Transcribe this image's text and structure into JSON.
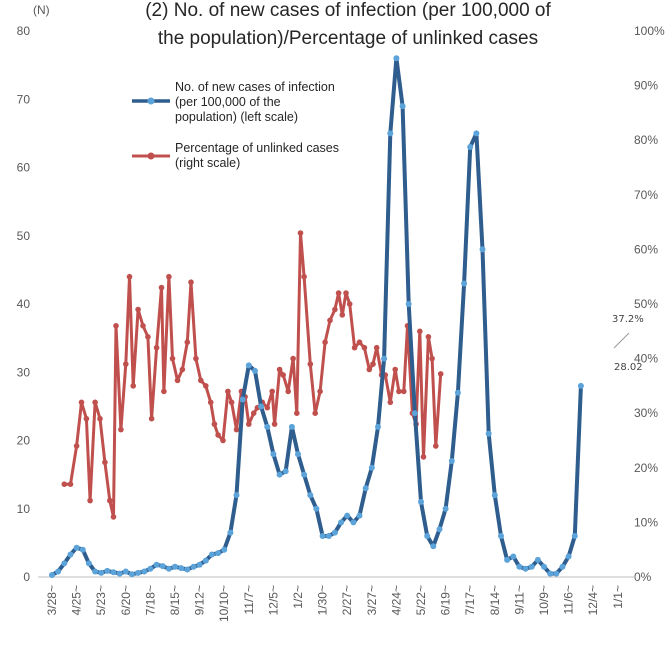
{
  "chart_data": {
    "type": "line",
    "title_line1": "(2) No. of new cases of infection (per 100,000 of",
    "title_line2": "the population)/Percentage of unlinked cases",
    "left_unit": "(N)",
    "y_left": {
      "min": 0,
      "max": 80,
      "ticks": [
        "0",
        "10",
        "20",
        "30",
        "40",
        "50",
        "60",
        "70",
        "80"
      ]
    },
    "y_right": {
      "min": 0,
      "max": 100,
      "ticks": [
        "0%",
        "10%",
        "20%",
        "30%",
        "40%",
        "50%",
        "60%",
        "70%",
        "80%",
        "90%",
        "100%"
      ]
    },
    "x_labels": [
      "3/28~",
      "4/25~",
      "5/23~",
      "6/20~",
      "7/18~",
      "8/15~",
      "9/12~",
      "10/10~",
      "11/7~",
      "12/5~",
      "1/2~",
      "1/30~",
      "2/27~",
      "3/27~",
      "4/24~",
      "5/22~",
      "6/19~",
      "7/17~",
      "8/14~",
      "9/11~",
      "10/9~",
      "11/6~",
      "12/4~",
      "1/1~"
    ],
    "legend": {
      "series1": [
        "No. of new cases of infection",
        "(per 100,000 of the",
        "population) (left scale)"
      ],
      "series2": [
        "Percentage of unlinked cases",
        "(right scale)"
      ]
    },
    "annotations": {
      "new_cases_last": "28.02",
      "unlinked_last": "37.2%"
    },
    "colors": {
      "new_cases_line": "#2e5d8e",
      "new_cases_marker": "#5ba3d9",
      "unlinked": "#c0504d"
    },
    "grid": false,
    "legend_position": "top-left inside plot",
    "series": [
      {
        "name": "No. of new cases of infection (per 100,000 of the population) (left scale)",
        "axis": "left",
        "points": [
          [
            0,
            0.3
          ],
          [
            0.25,
            0.8
          ],
          [
            0.5,
            2
          ],
          [
            0.75,
            3.3
          ],
          [
            1,
            4.3
          ],
          [
            1.25,
            4
          ],
          [
            1.5,
            2
          ],
          [
            1.75,
            0.8
          ],
          [
            2,
            0.6
          ],
          [
            2.25,
            0.9
          ],
          [
            2.5,
            0.7
          ],
          [
            2.75,
            0.5
          ],
          [
            3,
            0.8
          ],
          [
            3.25,
            0.4
          ],
          [
            3.5,
            0.6
          ],
          [
            3.75,
            0.8
          ],
          [
            4,
            1.2
          ],
          [
            4.25,
            1.8
          ],
          [
            4.5,
            1.6
          ],
          [
            4.75,
            1.2
          ],
          [
            5,
            1.5
          ],
          [
            5.25,
            1.3
          ],
          [
            5.5,
            1.1
          ],
          [
            5.75,
            1.5
          ],
          [
            6,
            1.8
          ],
          [
            6.25,
            2.4
          ],
          [
            6.5,
            3.3
          ],
          [
            6.75,
            3.5
          ],
          [
            7,
            4
          ],
          [
            7.25,
            6.5
          ],
          [
            7.5,
            12
          ],
          [
            7.75,
            26
          ],
          [
            8,
            31
          ],
          [
            8.25,
            30.2
          ],
          [
            8.5,
            25
          ],
          [
            8.75,
            22
          ],
          [
            9,
            18
          ],
          [
            9.25,
            15
          ],
          [
            9.5,
            15.5
          ],
          [
            9.75,
            22
          ],
          [
            10,
            18
          ],
          [
            10.25,
            15
          ],
          [
            10.5,
            12
          ],
          [
            10.75,
            10
          ],
          [
            11,
            6
          ],
          [
            11.25,
            6
          ],
          [
            11.5,
            6.5
          ],
          [
            11.75,
            8
          ],
          [
            12,
            9
          ],
          [
            12.25,
            8
          ],
          [
            12.5,
            9
          ],
          [
            12.75,
            13
          ],
          [
            13,
            16
          ],
          [
            13.25,
            22
          ],
          [
            13.5,
            32
          ],
          [
            13.75,
            65
          ],
          [
            14,
            76
          ],
          [
            14.25,
            69
          ],
          [
            14.5,
            40
          ],
          [
            14.75,
            24
          ],
          [
            15,
            11
          ],
          [
            15.25,
            6
          ],
          [
            15.5,
            4.5
          ],
          [
            15.75,
            7
          ],
          [
            16,
            10
          ],
          [
            16.25,
            17
          ],
          [
            16.5,
            27
          ],
          [
            16.75,
            43
          ],
          [
            17,
            63
          ],
          [
            17.25,
            65
          ],
          [
            17.5,
            48
          ],
          [
            17.75,
            21
          ],
          [
            18,
            12
          ],
          [
            18.25,
            6
          ],
          [
            18.5,
            2.5
          ],
          [
            18.75,
            3
          ],
          [
            19,
            1.5
          ],
          [
            19.25,
            1.2
          ],
          [
            19.5,
            1.5
          ],
          [
            19.75,
            2.5
          ],
          [
            20,
            1.5
          ],
          [
            20.25,
            0.5
          ],
          [
            20.5,
            0.5
          ],
          [
            20.75,
            1.5
          ],
          [
            21,
            3
          ],
          [
            21.25,
            6
          ],
          [
            21.5,
            28
          ]
        ]
      },
      {
        "name": "Percentage of unlinked cases (right scale)",
        "axis": "right",
        "points": [
          [
            0.5,
            17
          ],
          [
            0.75,
            17
          ],
          [
            1,
            24
          ],
          [
            1.2,
            32
          ],
          [
            1.4,
            29
          ],
          [
            1.55,
            14
          ],
          [
            1.75,
            32
          ],
          [
            1.95,
            29
          ],
          [
            2.15,
            21
          ],
          [
            2.35,
            14
          ],
          [
            2.5,
            11
          ],
          [
            2.6,
            46
          ],
          [
            2.8,
            27
          ],
          [
            3,
            39
          ],
          [
            3.15,
            55
          ],
          [
            3.3,
            35
          ],
          [
            3.5,
            49
          ],
          [
            3.7,
            46
          ],
          [
            3.9,
            44
          ],
          [
            4.05,
            29
          ],
          [
            4.25,
            42
          ],
          [
            4.45,
            53
          ],
          [
            4.55,
            34
          ],
          [
            4.75,
            55
          ],
          [
            4.9,
            40
          ],
          [
            5.1,
            36
          ],
          [
            5.3,
            38
          ],
          [
            5.5,
            43
          ],
          [
            5.65,
            54
          ],
          [
            5.85,
            40
          ],
          [
            6.05,
            36
          ],
          [
            6.25,
            35
          ],
          [
            6.45,
            32
          ],
          [
            6.6,
            28
          ],
          [
            6.75,
            26
          ],
          [
            6.95,
            25
          ],
          [
            7.15,
            34
          ],
          [
            7.3,
            32
          ],
          [
            7.5,
            27
          ],
          [
            7.7,
            34
          ],
          [
            7.85,
            33
          ],
          [
            8,
            28
          ],
          [
            8.2,
            30
          ],
          [
            8.35,
            31
          ],
          [
            8.55,
            32
          ],
          [
            8.75,
            31
          ],
          [
            8.95,
            34
          ],
          [
            9.05,
            28
          ],
          [
            9.25,
            38
          ],
          [
            9.4,
            37
          ],
          [
            9.6,
            34
          ],
          [
            9.8,
            40
          ],
          [
            9.95,
            30
          ],
          [
            10.1,
            63
          ],
          [
            10.25,
            55
          ],
          [
            10.5,
            39
          ],
          [
            10.7,
            30
          ],
          [
            10.9,
            34
          ],
          [
            11.1,
            43
          ],
          [
            11.3,
            47
          ],
          [
            11.5,
            49
          ],
          [
            11.65,
            52
          ],
          [
            11.8,
            48
          ],
          [
            11.95,
            52
          ],
          [
            12.1,
            50
          ],
          [
            12.3,
            42
          ],
          [
            12.5,
            43
          ],
          [
            12.7,
            42
          ],
          [
            12.9,
            38
          ],
          [
            13.05,
            39
          ],
          [
            13.2,
            42
          ],
          [
            13.4,
            37
          ],
          [
            13.55,
            37
          ],
          [
            13.75,
            32
          ],
          [
            13.95,
            38
          ],
          [
            14.1,
            34
          ],
          [
            14.3,
            34
          ],
          [
            14.45,
            46
          ],
          [
            14.65,
            30
          ],
          [
            14.8,
            28
          ],
          [
            14.95,
            45
          ],
          [
            15.1,
            22
          ],
          [
            15.3,
            44
          ],
          [
            15.45,
            40
          ],
          [
            15.6,
            24
          ],
          [
            15.8,
            37.2
          ]
        ]
      }
    ]
  }
}
